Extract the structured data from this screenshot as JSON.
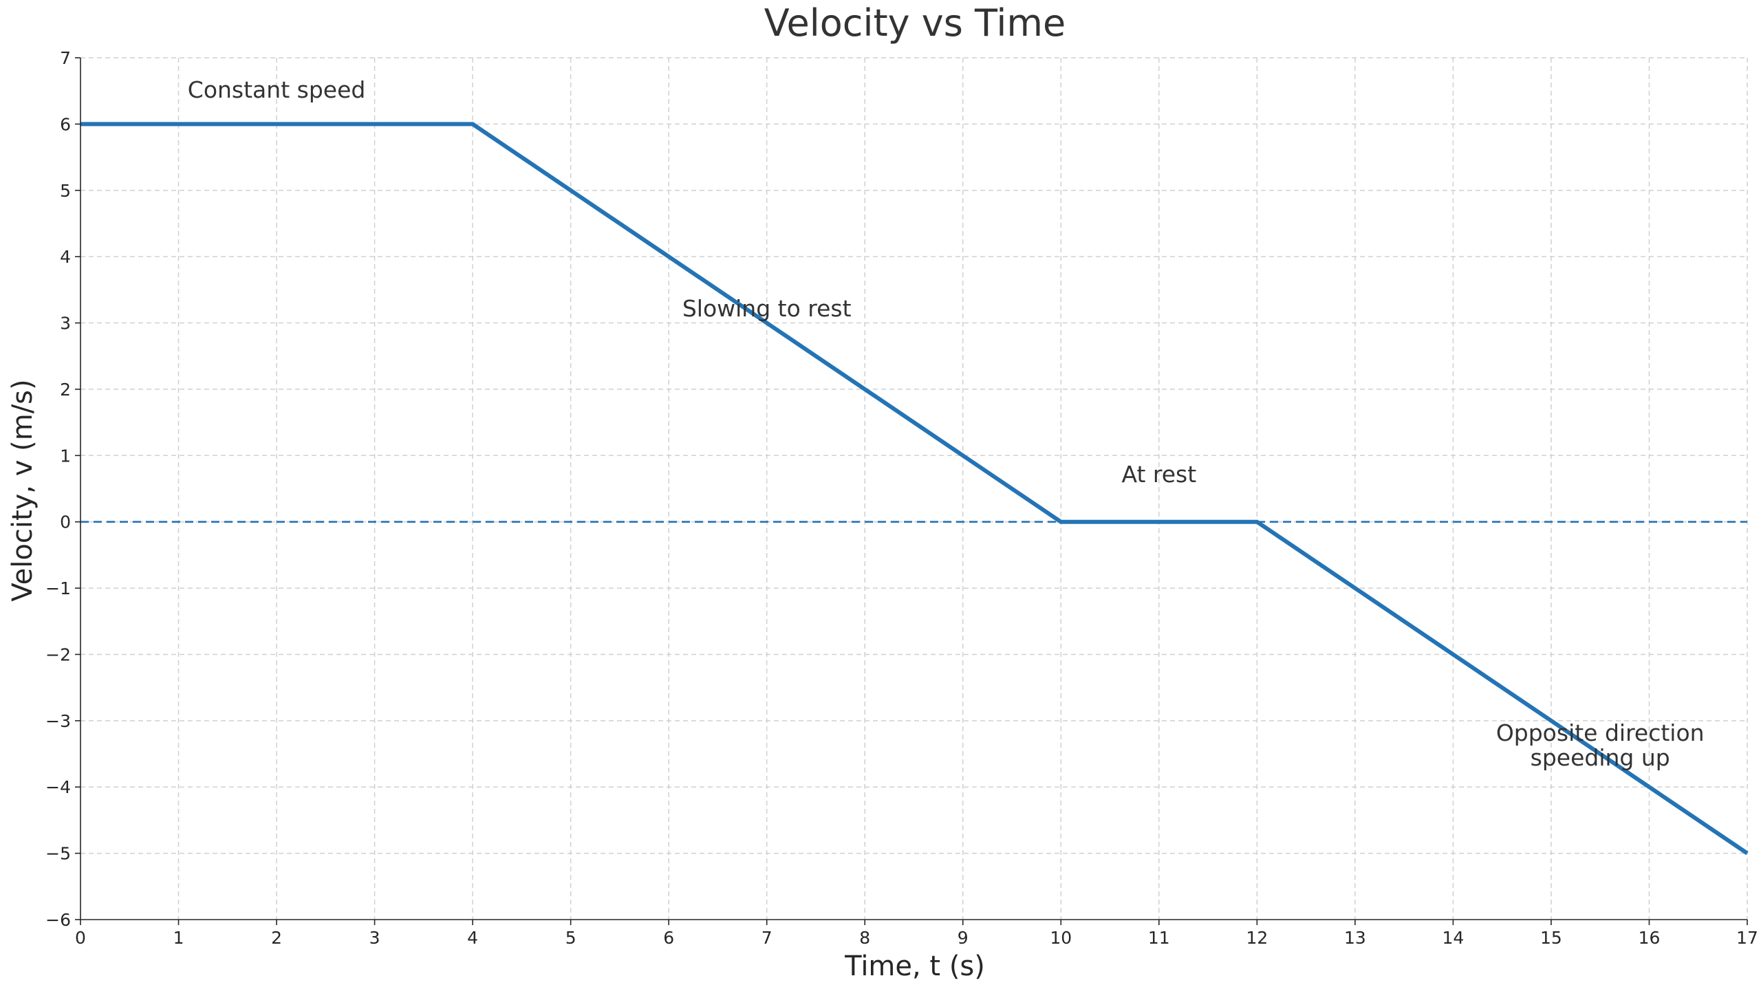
{
  "chart_data": {
    "type": "line",
    "title": "Velocity vs Time",
    "xlabel": "Time, t (s)",
    "ylabel": "Velocity, v (m/s)",
    "xlim": [
      0,
      17
    ],
    "ylim": [
      -6,
      7
    ],
    "xticks": [
      0,
      1,
      2,
      3,
      4,
      5,
      6,
      7,
      8,
      9,
      10,
      11,
      12,
      13,
      14,
      15,
      16,
      17
    ],
    "yticks": [
      -6,
      -5,
      -4,
      -3,
      -2,
      -1,
      0,
      1,
      2,
      3,
      4,
      5,
      6,
      7
    ],
    "xtick_labels": [
      "0",
      "1",
      "2",
      "3",
      "4",
      "5",
      "6",
      "7",
      "8",
      "9",
      "10",
      "11",
      "12",
      "13",
      "14",
      "15",
      "16",
      "17"
    ],
    "ytick_labels": [
      "−6",
      "−5",
      "−4",
      "−3",
      "−2",
      "−1",
      "0",
      "1",
      "2",
      "3",
      "4",
      "5",
      "6",
      "7"
    ],
    "grid": true,
    "series": [
      {
        "x": [
          0,
          4,
          10,
          12,
          17
        ],
        "y": [
          6,
          6,
          0,
          0,
          -5
        ],
        "color": "#2474b5"
      }
    ],
    "reference_line": {
      "y": 0,
      "style": "dashed",
      "color": "#2474b5"
    },
    "annotations": [
      {
        "lines": [
          "Constant speed"
        ],
        "x": 2,
        "y": 6.4
      },
      {
        "lines": [
          "Slowing to rest"
        ],
        "x": 7,
        "y": 3.1
      },
      {
        "lines": [
          "At rest"
        ],
        "x": 11,
        "y": 0.6
      },
      {
        "lines": [
          "Opposite direction",
          "speeding up"
        ],
        "x": 15.5,
        "y": -3.3
      }
    ]
  }
}
